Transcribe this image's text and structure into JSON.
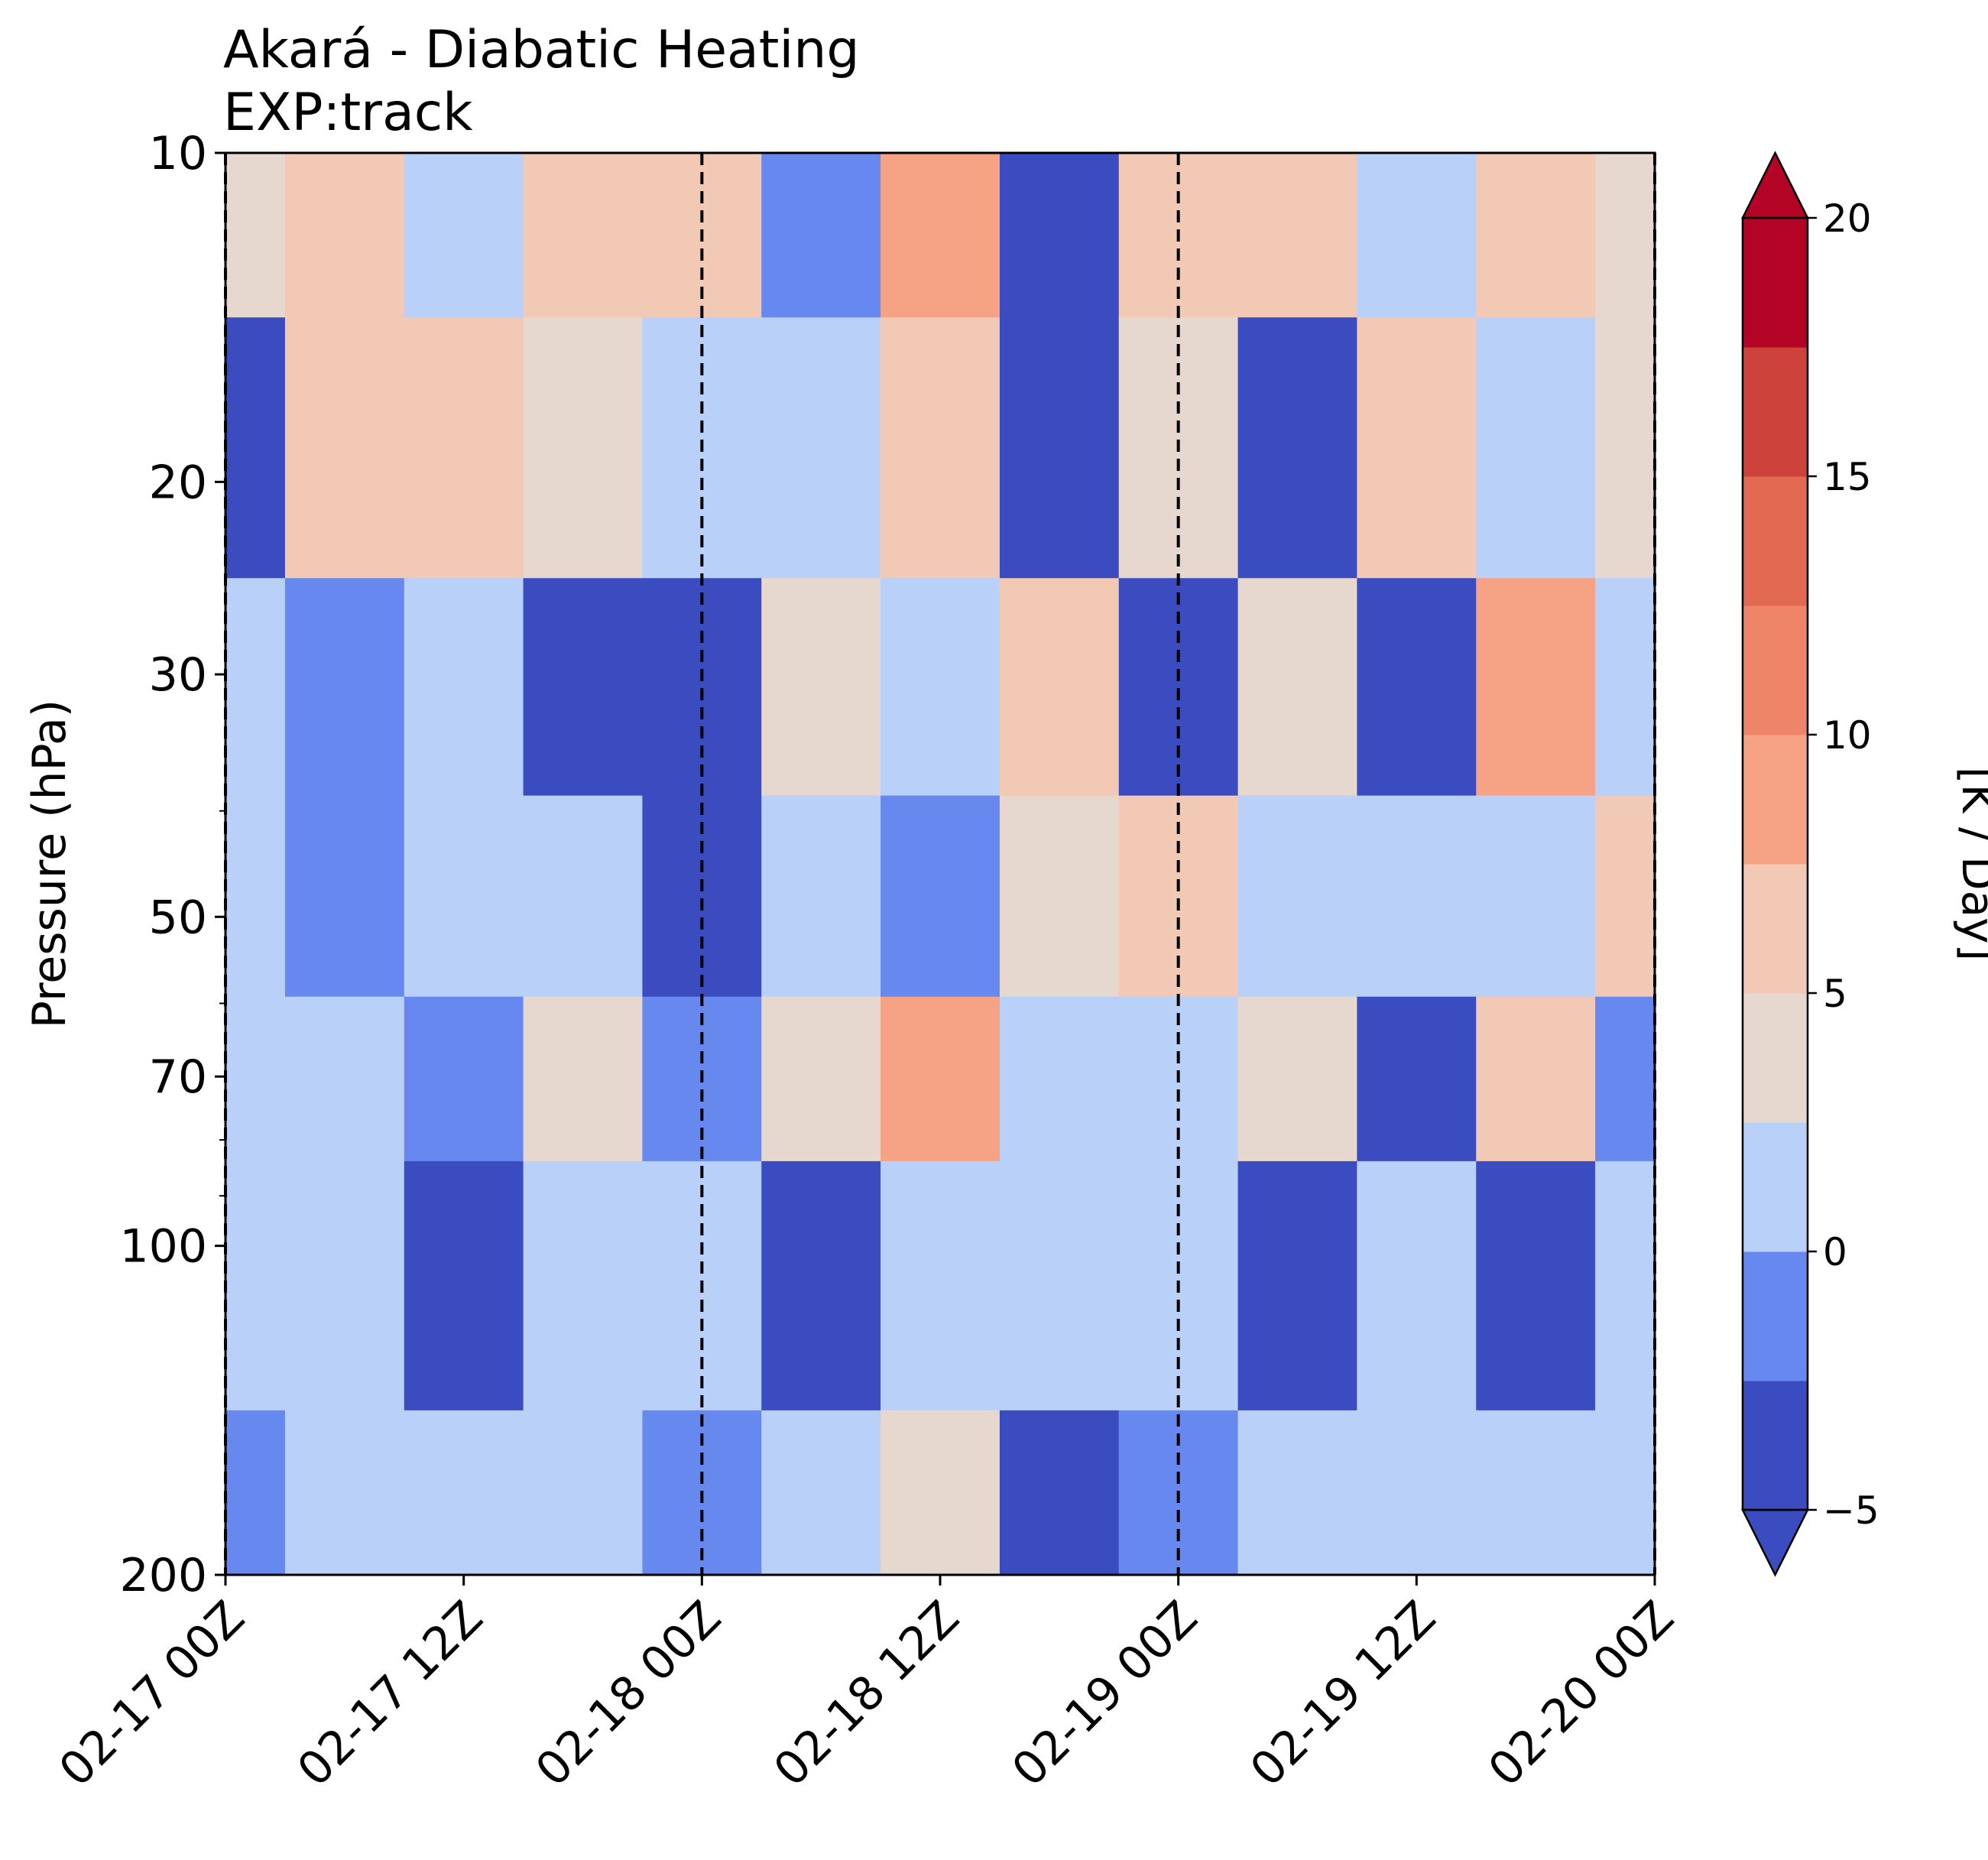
{
  "chart_data": {
    "type": "heatmap",
    "title": "Akará - Diabatic Heating",
    "subtitle": "EXP:track",
    "xlabel": "",
    "ylabel": "Pressure (hPa)",
    "x": [
      "02-17 00Z",
      "02-17 06Z",
      "02-17 12Z",
      "02-17 18Z",
      "02-18 00Z",
      "02-18 06Z",
      "02-18 12Z",
      "02-18 18Z",
      "02-19 00Z",
      "02-19 06Z",
      "02-19 12Z",
      "02-19 18Z",
      "02-20 00Z"
    ],
    "x_tick_labels": [
      "02-17 00Z",
      "02-17 12Z",
      "02-18 00Z",
      "02-18 12Z",
      "02-19 00Z",
      "02-19 12Z",
      "02-20 00Z"
    ],
    "y": [
      10,
      20,
      30,
      50,
      70,
      100,
      200
    ],
    "y_scale": "log",
    "y_tick_labels": [
      "10",
      "20",
      "30",
      "50",
      "70",
      "100",
      "200"
    ],
    "ylim": [
      200,
      10
    ],
    "values": [
      [
        4,
        6,
        2,
        5,
        6,
        -2,
        8,
        -4,
        5,
        6,
        2,
        5,
        4
      ],
      [
        -4,
        5,
        6,
        4,
        2,
        1,
        5,
        -4,
        3,
        -5,
        6,
        1,
        3
      ],
      [
        2,
        -1,
        2,
        -3,
        -3,
        4,
        1,
        6,
        -4,
        3,
        -4,
        8,
        2
      ],
      [
        0,
        -2,
        2,
        1,
        -4,
        1,
        -1,
        3,
        6,
        2,
        1,
        0,
        6
      ],
      [
        0,
        2,
        -1,
        4,
        -2,
        3,
        8,
        1,
        2,
        3,
        -3,
        5,
        -1
      ],
      [
        1,
        0,
        -3,
        1,
        2,
        -3,
        1,
        2,
        0,
        -3,
        0,
        -3,
        1
      ],
      [
        -1,
        1,
        0,
        2,
        -1,
        0,
        3,
        -4,
        -2,
        1,
        2,
        1,
        0
      ]
    ],
    "vertical_lines_at": [
      "02-17 00Z",
      "02-18 00Z",
      "02-19 00Z",
      "02-20 00Z"
    ],
    "colorbar": {
      "label": "[K / Day]",
      "ticks": [
        "20",
        "15",
        "10",
        "5",
        "0",
        "−5"
      ],
      "levels": [
        -5,
        -2.5,
        0,
        2.5,
        5,
        7.5,
        10,
        12.5,
        15,
        17.5,
        20
      ],
      "colors": [
        "#3b4cc0",
        "#6788ee",
        "#b9d0f9",
        "#e6d7cf",
        "#f2c9b4",
        "#f6a385",
        "#ee8468",
        "#e26952",
        "#cd423b",
        "#b40426"
      ],
      "extend_low_color": "#3b4cc0",
      "extend_high_color": "#b40426"
    },
    "legend": "none",
    "grid": false
  }
}
